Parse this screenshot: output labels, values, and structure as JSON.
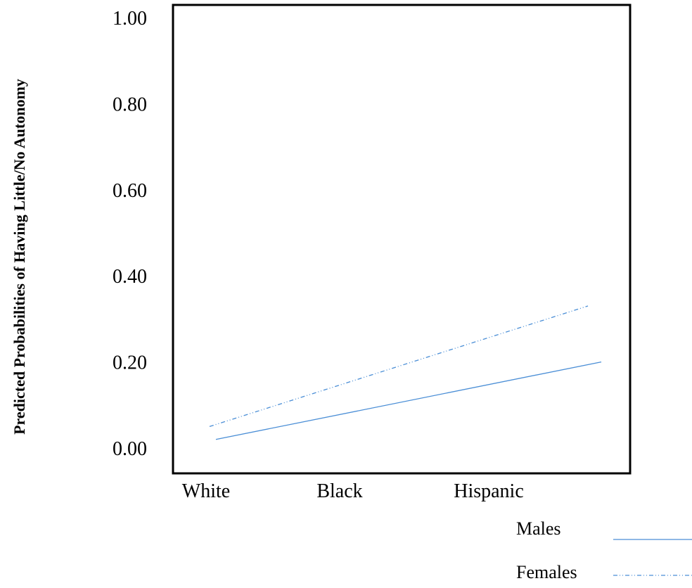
{
  "chart_data": {
    "type": "line",
    "title": "",
    "xlabel": "",
    "ylabel": "Predicted Probabilities of Having Little/No Autonomy",
    "categories": [
      "White",
      "Black",
      "Hispanic"
    ],
    "yticks": [
      "0.00",
      "0.20",
      "0.40",
      "0.60",
      "0.80",
      "1.00"
    ],
    "ylim": [
      0,
      1
    ],
    "grid": false,
    "legend": "bottom-right",
    "series": [
      {
        "name": "Males",
        "x": [
          1,
          4
        ],
        "values": [
          0.02,
          0.2
        ],
        "color": "#4a8ed6",
        "style": "solid"
      },
      {
        "name": "Females",
        "x": [
          1,
          4
        ],
        "values": [
          0.05,
          0.33
        ],
        "color": "#4a8ed6",
        "style": "dash-dot-dot"
      }
    ]
  }
}
